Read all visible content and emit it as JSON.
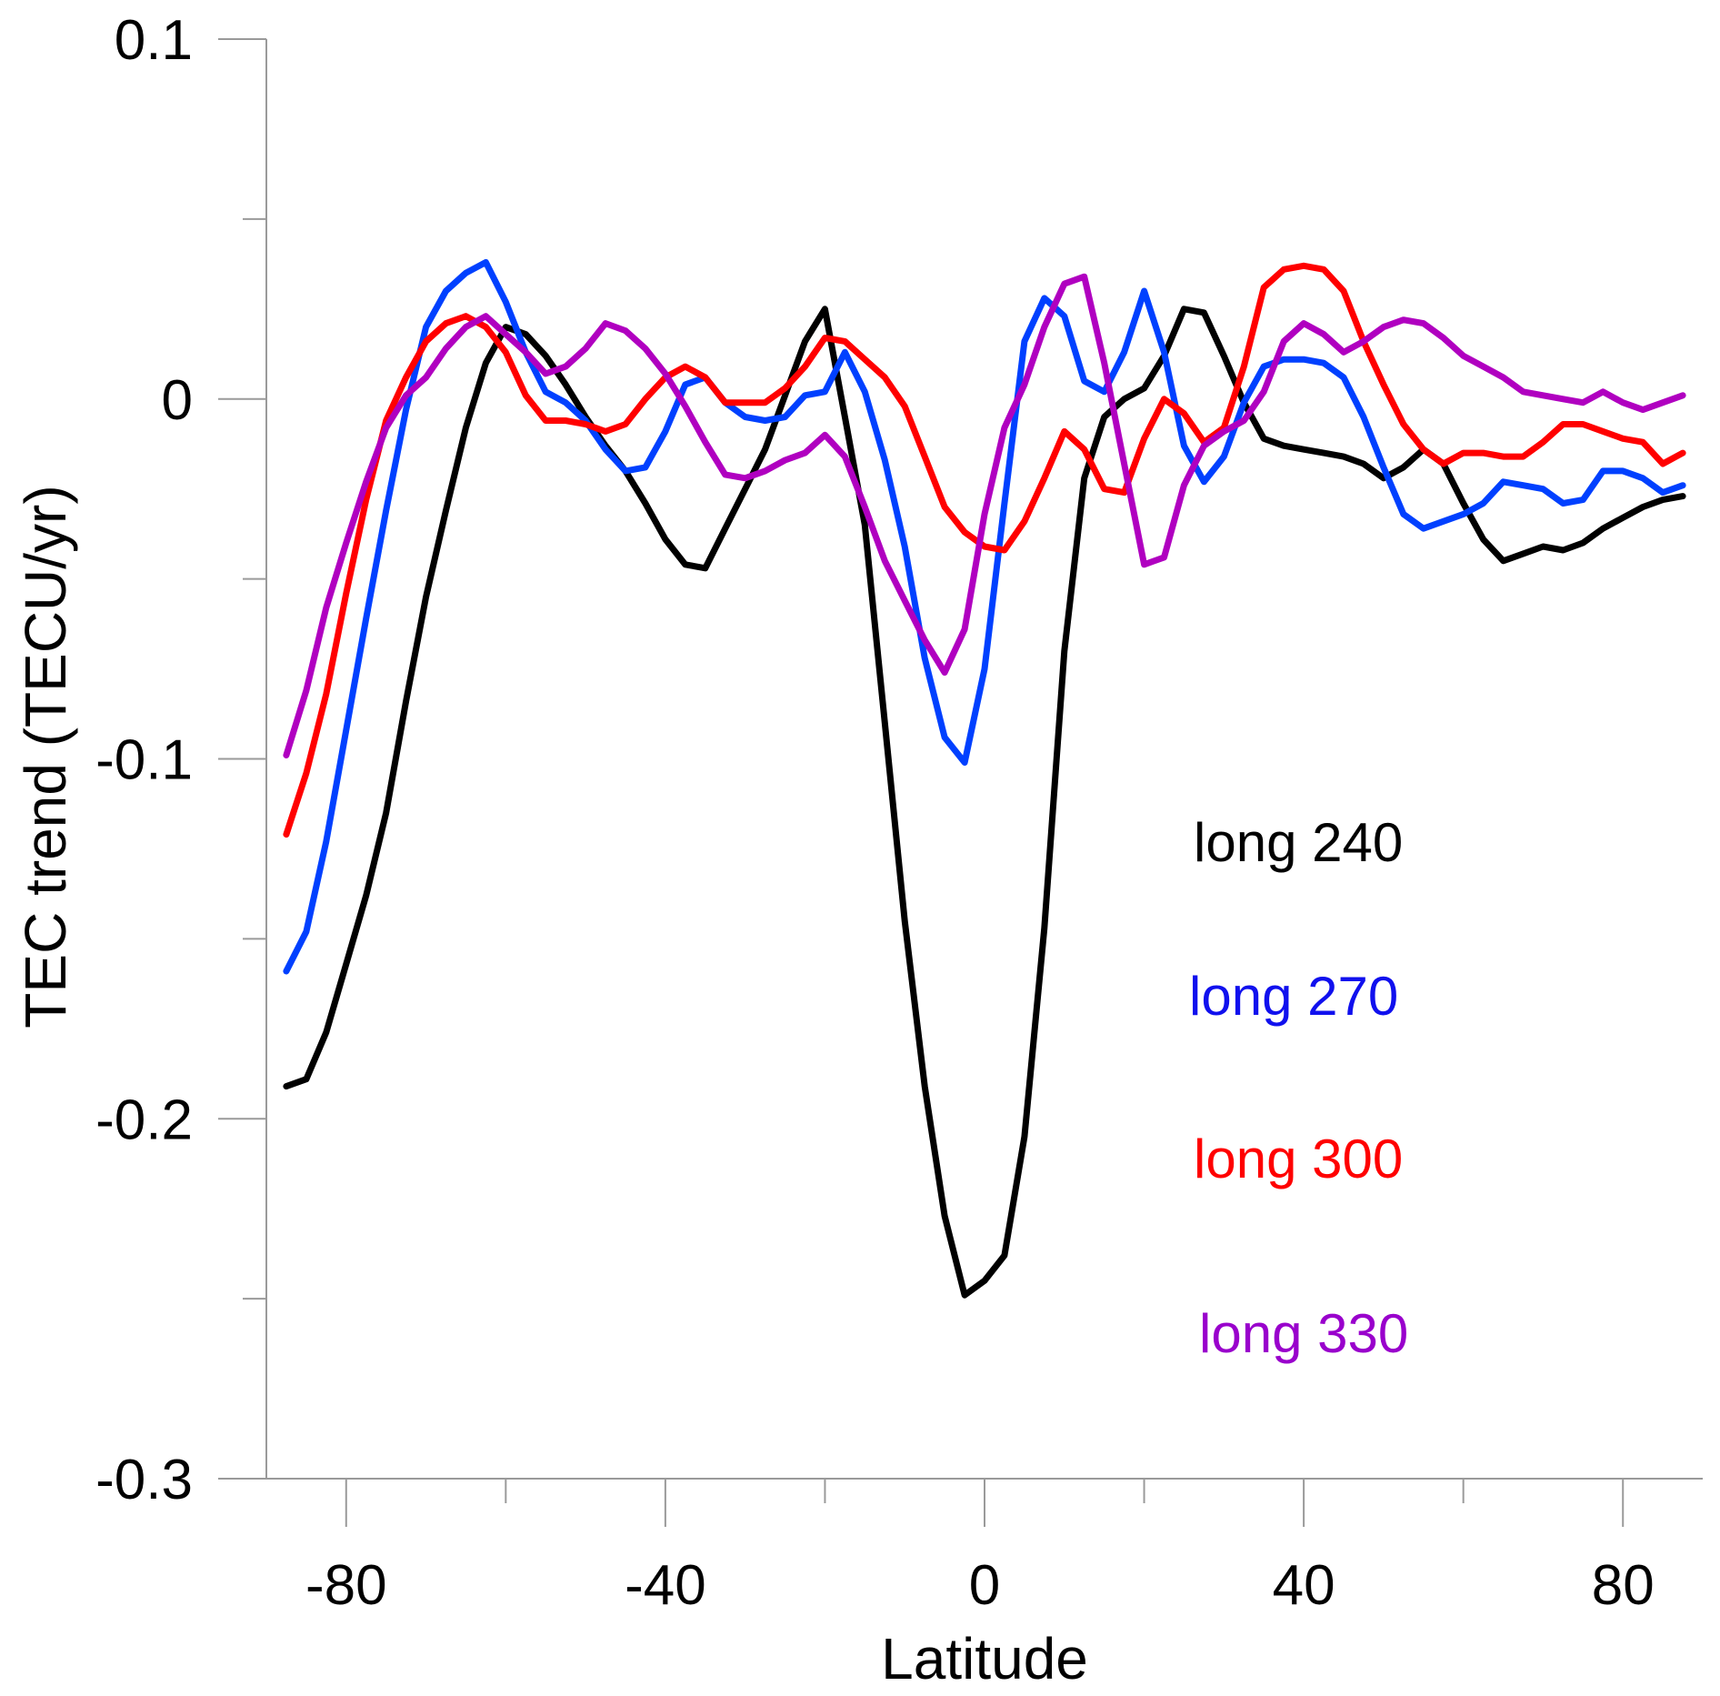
{
  "chart_data": {
    "type": "line",
    "title": "",
    "xlabel": "Latitude",
    "ylabel": "TEC trend (TECU/yr)",
    "xlim": [
      -90,
      90
    ],
    "ylim": [
      -0.3,
      0.1
    ],
    "grid": false,
    "x_major_ticks": [
      -80,
      -40,
      0,
      40,
      80
    ],
    "x_tick_labels": [
      "-80",
      "-40",
      "0",
      "40",
      "80"
    ],
    "x_minor_ticks": [
      -60,
      -20,
      20,
      60
    ],
    "y_major_ticks": [
      0.1,
      0,
      -0.1,
      -0.2,
      -0.3
    ],
    "y_tick_labels": [
      "0.1",
      "0",
      "-0.1",
      "-0.2",
      "-0.3"
    ],
    "y_minor_ticks": [
      0.05,
      -0.05,
      -0.15,
      -0.25
    ],
    "legend_placement": "right-inside, stacked text labels",
    "x": [
      -87.5,
      -85,
      -82.5,
      -80,
      -77.5,
      -75,
      -72.5,
      -70,
      -67.5,
      -65,
      -62.5,
      -60,
      -57.5,
      -55,
      -52.5,
      -50,
      -47.5,
      -45,
      -42.5,
      -40,
      -37.5,
      -35,
      -32.5,
      -30,
      -27.5,
      -25,
      -22.5,
      -20,
      -17.5,
      -15,
      -12.5,
      -10,
      -7.5,
      -5,
      -2.5,
      0,
      2.5,
      5,
      7.5,
      10,
      12.5,
      15,
      17.5,
      20,
      22.5,
      25,
      27.5,
      30,
      32.5,
      35,
      37.5,
      40,
      42.5,
      45,
      47.5,
      50,
      52.5,
      55,
      57.5,
      60,
      62.5,
      65,
      67.5,
      70,
      72.5,
      75,
      77.5,
      80,
      82.5,
      85,
      87.5
    ],
    "series": [
      {
        "name": "long 240",
        "color": "#000000",
        "label_color": "#000000",
        "values": [
          -0.191,
          -0.189,
          -0.176,
          -0.157,
          -0.138,
          -0.115,
          -0.084,
          -0.055,
          -0.031,
          -0.008,
          0.01,
          0.02,
          0.018,
          0.012,
          0.004,
          -0.005,
          -0.013,
          -0.02,
          -0.029,
          -0.039,
          -0.046,
          -0.047,
          -0.036,
          -0.025,
          -0.014,
          0.001,
          0.016,
          0.025,
          -0.005,
          -0.035,
          -0.09,
          -0.145,
          -0.191,
          -0.227,
          -0.249,
          -0.245,
          -0.238,
          -0.205,
          -0.147,
          -0.07,
          -0.022,
          -0.005,
          0.0,
          0.003,
          0.012,
          0.025,
          0.024,
          0.012,
          -0.001,
          -0.011,
          -0.013,
          -0.014,
          -0.015,
          -0.016,
          -0.018,
          -0.022,
          -0.019,
          -0.014,
          -0.018,
          -0.029,
          -0.039,
          -0.045,
          -0.043,
          -0.041,
          -0.042,
          -0.04,
          -0.036,
          -0.033,
          -0.03,
          -0.028,
          -0.027
        ]
      },
      {
        "name": "long 270",
        "color": "#0040ff",
        "label_color": "#1010ee",
        "values": [
          -0.159,
          -0.148,
          -0.123,
          -0.092,
          -0.061,
          -0.031,
          -0.003,
          0.02,
          0.03,
          0.035,
          0.038,
          0.027,
          0.013,
          0.002,
          -0.001,
          -0.006,
          -0.014,
          -0.02,
          -0.019,
          -0.009,
          0.004,
          0.006,
          -0.001,
          -0.005,
          -0.006,
          -0.005,
          0.001,
          0.002,
          0.013,
          0.002,
          -0.017,
          -0.041,
          -0.072,
          -0.094,
          -0.101,
          -0.075,
          -0.029,
          0.016,
          0.028,
          0.023,
          0.005,
          0.002,
          0.013,
          0.03,
          0.013,
          -0.013,
          -0.023,
          -0.016,
          -0.001,
          0.009,
          0.011,
          0.011,
          0.01,
          0.006,
          -0.005,
          -0.019,
          -0.032,
          -0.036,
          -0.034,
          -0.032,
          -0.029,
          -0.023,
          -0.024,
          -0.025,
          -0.029,
          -0.028,
          -0.02,
          -0.02,
          -0.022,
          -0.026,
          -0.024
        ]
      },
      {
        "name": "long 300",
        "color": "#ff0000",
        "label_color": "#ff0000",
        "values": [
          -0.121,
          -0.104,
          -0.082,
          -0.054,
          -0.028,
          -0.006,
          0.006,
          0.016,
          0.021,
          0.023,
          0.02,
          0.013,
          0.001,
          -0.006,
          -0.006,
          -0.007,
          -0.009,
          -0.007,
          0.0,
          0.006,
          0.009,
          0.006,
          -0.001,
          -0.001,
          -0.001,
          0.003,
          0.009,
          0.017,
          0.016,
          0.011,
          0.006,
          -0.002,
          -0.016,
          -0.03,
          -0.037,
          -0.041,
          -0.042,
          -0.034,
          -0.022,
          -0.009,
          -0.014,
          -0.025,
          -0.026,
          -0.011,
          0.0,
          -0.004,
          -0.012,
          -0.008,
          0.009,
          0.031,
          0.036,
          0.037,
          0.036,
          0.03,
          0.016,
          0.004,
          -0.007,
          -0.014,
          -0.018,
          -0.015,
          -0.015,
          -0.016,
          -0.016,
          -0.012,
          -0.007,
          -0.007,
          -0.009,
          -0.011,
          -0.012,
          -0.018,
          -0.015
        ]
      },
      {
        "name": "long 330",
        "color": "#b000c0",
        "label_color": "#9900cc",
        "values": [
          -0.099,
          -0.081,
          -0.058,
          -0.04,
          -0.023,
          -0.008,
          0.001,
          0.006,
          0.014,
          0.02,
          0.023,
          0.018,
          0.013,
          0.007,
          0.009,
          0.014,
          0.021,
          0.019,
          0.014,
          0.007,
          -0.002,
          -0.012,
          -0.021,
          -0.022,
          -0.02,
          -0.017,
          -0.015,
          -0.01,
          -0.016,
          -0.03,
          -0.045,
          -0.056,
          -0.067,
          -0.076,
          -0.064,
          -0.032,
          -0.008,
          0.004,
          0.02,
          0.032,
          0.034,
          0.01,
          -0.018,
          -0.046,
          -0.044,
          -0.024,
          -0.013,
          -0.009,
          -0.006,
          0.002,
          0.016,
          0.021,
          0.018,
          0.013,
          0.016,
          0.02,
          0.022,
          0.021,
          0.017,
          0.012,
          0.009,
          0.006,
          0.002,
          0.001,
          0.0,
          -0.001,
          0.002,
          -0.001,
          -0.003,
          -0.001,
          0.001
        ]
      }
    ]
  }
}
